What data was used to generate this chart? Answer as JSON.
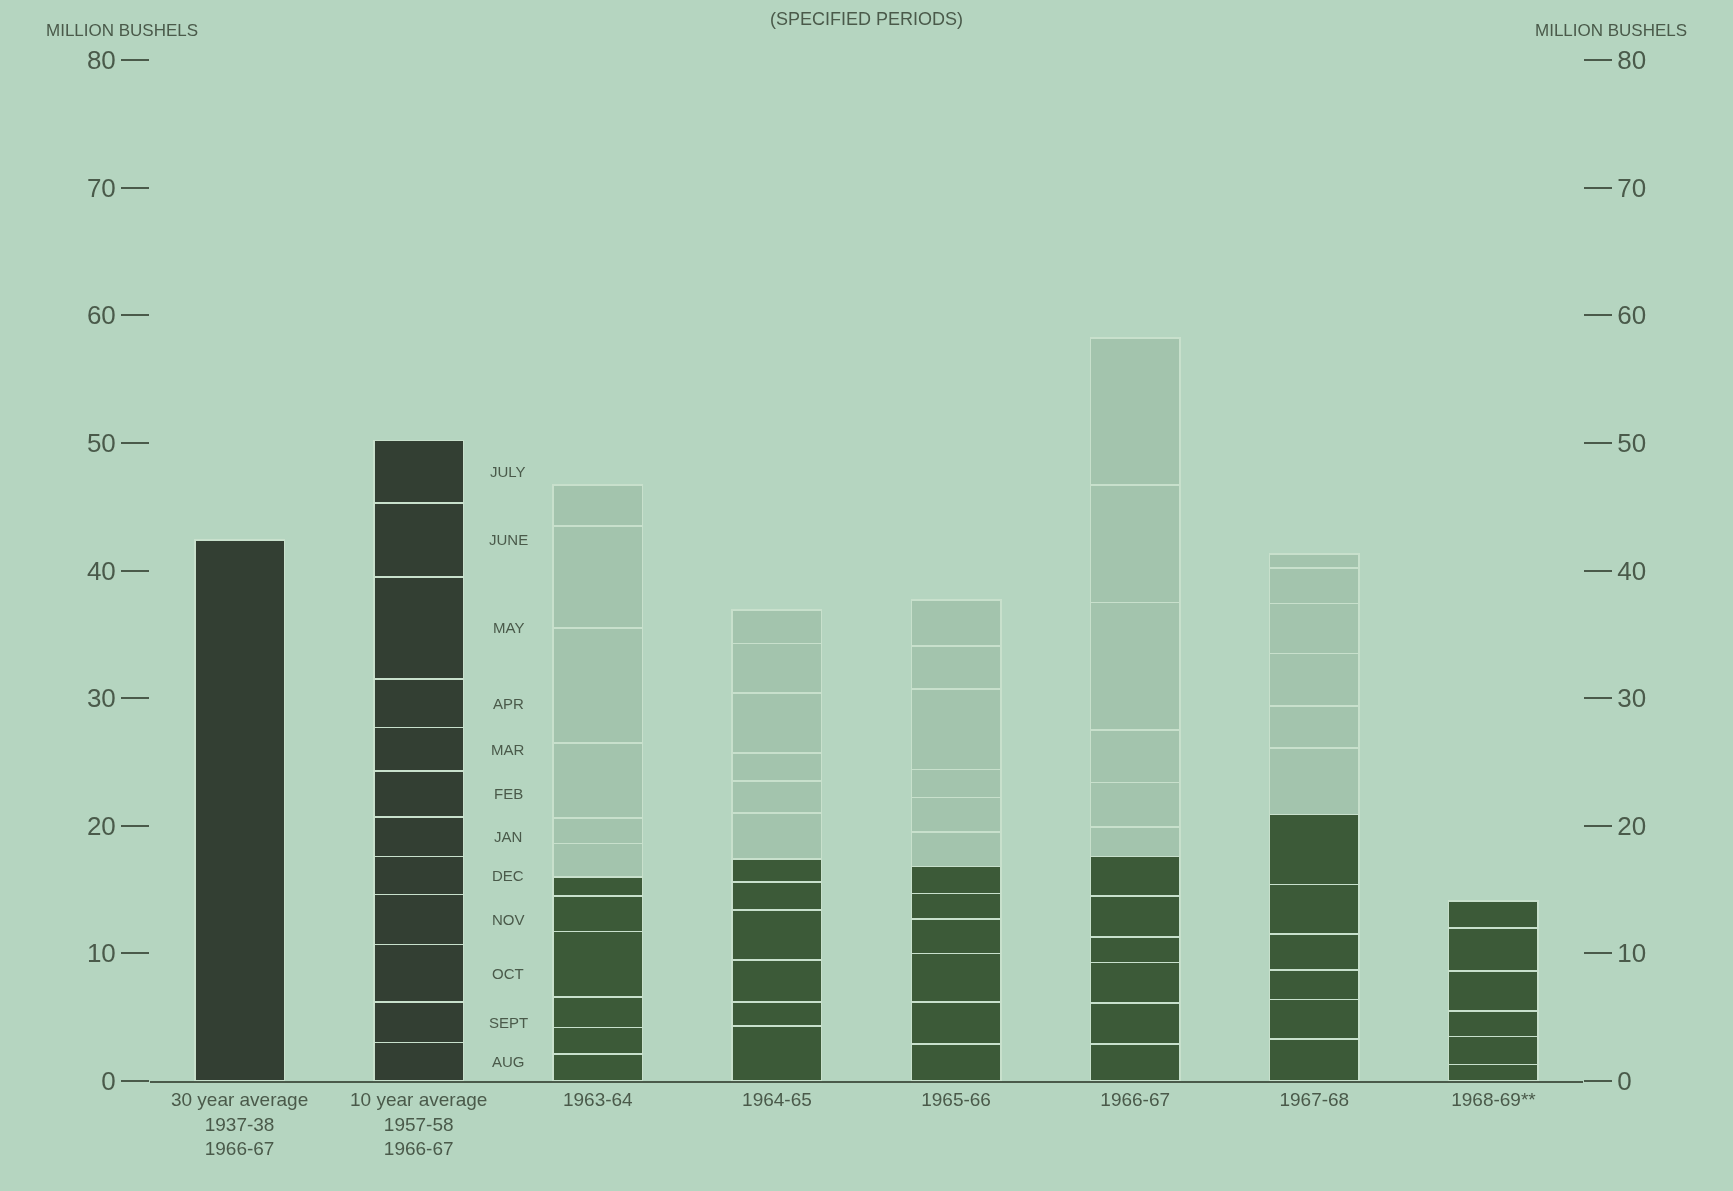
{
  "chart_data": {
    "type": "bar",
    "stacked": true,
    "title": "(SPECIFIED PERIODS)",
    "ylabel": "MILLION BUSHELS",
    "y2label": "MILLION BUSHELS",
    "categories": [
      "30 year average\n1937-38\n1966-67",
      "10 year average\n1957-58\n1966-67",
      "1963-64",
      "1964-65",
      "1965-66",
      "1966-67",
      "1967-68",
      "1968-69**"
    ],
    "series": [
      {
        "values": [
          42.4,
          null,
          null,
          null,
          null,
          null,
          null,
          null
        ],
        "colors": [
          "#333f33",
          "#333f33",
          "#3c5a38",
          "#3c5a38",
          "#3c5a38",
          "#3c5a38",
          "#3c5a38",
          "#3c5a38"
        ]
      },
      {
        "name": "AUG",
        "values": [
          null,
          3.0,
          2.1,
          4.3,
          2.9,
          2.9,
          3.3,
          1.3
        ],
        "colors": [
          "#333f33",
          "#333f33",
          "#3c5a38",
          "#3c5a38",
          "#3c5a38",
          "#3c5a38",
          "#3c5a38",
          "#3c5a38"
        ]
      },
      {
        "name": "SEPT",
        "values": [
          null,
          3.2,
          2.1,
          1.9,
          3.3,
          3.2,
          3.1,
          2.2
        ],
        "colors": [
          "#333f33",
          "#333f33",
          "#3c5a38",
          "#3c5a38",
          "#3c5a38",
          "#3c5a38",
          "#3c5a38",
          "#3c5a38"
        ]
      },
      {
        "name": "OCT",
        "values": [
          null,
          4.5,
          2.4,
          3.3,
          3.8,
          3.2,
          2.3,
          2.0
        ],
        "colors": [
          "#333f33",
          "#333f33",
          "#3c5a38",
          "#3c5a38",
          "#3c5a38",
          "#3c5a38",
          "#3c5a38",
          "#3c5a38"
        ]
      },
      {
        "name": "NOV",
        "values": [
          null,
          3.9,
          5.1,
          3.9,
          2.7,
          2.0,
          2.8,
          3.1
        ],
        "colors": [
          "#333f33",
          "#333f33",
          "#3c5a38",
          "#3c5a38",
          "#3c5a38",
          "#3c5a38",
          "#3c5a38",
          "#3c5a38"
        ]
      },
      {
        "name": "DEC",
        "values": [
          null,
          3.0,
          2.8,
          2.2,
          2.0,
          3.2,
          3.9,
          3.4
        ],
        "colors": [
          "#333f33",
          "#333f33",
          "#3c5a38",
          "#3c5a38",
          "#3c5a38",
          "#3c5a38",
          "#3c5a38",
          "#3c5a38"
        ]
      },
      {
        "name": "JAN",
        "values": [
          null,
          3.1,
          1.5,
          1.8,
          2.1,
          3.1,
          5.5,
          2.1
        ],
        "colors": [
          "#333f33",
          "#333f33",
          "#3c5a38",
          "#3c5a38",
          "#3c5a38",
          "#3c5a38",
          "#3c5a38",
          "#3c5a38"
        ]
      },
      {
        "name": "FEB",
        "values": [
          null,
          3.6,
          2.6,
          3.6,
          2.7,
          2.3,
          5.2,
          null
        ],
        "colors": [
          "#333f33",
          "#333f33",
          "#a3c4ad",
          "#a3c4ad",
          "#a3c4ad",
          "#a3c4ad",
          "#a3c4ad",
          "#a3c4ad"
        ]
      },
      {
        "name": "MAR",
        "values": [
          null,
          3.4,
          2.0,
          2.5,
          2.7,
          3.5,
          3.3,
          null
        ],
        "colors": [
          "#333f33",
          "#333f33",
          "#a3c4ad",
          "#a3c4ad",
          "#a3c4ad",
          "#a3c4ad",
          "#a3c4ad",
          "#a3c4ad"
        ]
      },
      {
        "name": "APR",
        "values": [
          null,
          3.8,
          5.9,
          2.2,
          2.2,
          4.1,
          4.1,
          null
        ],
        "colors": [
          "#333f33",
          "#333f33",
          "#a3c4ad",
          "#a3c4ad",
          "#a3c4ad",
          "#a3c4ad",
          "#a3c4ad",
          "#a3c4ad"
        ]
      },
      {
        "name": "MAY",
        "values": [
          null,
          8.0,
          9.0,
          4.7,
          6.3,
          10.0,
          3.9,
          null
        ],
        "colors": [
          "#333f33",
          "#333f33",
          "#a3c4ad",
          "#a3c4ad",
          "#a3c4ad",
          "#a3c4ad",
          "#a3c4ad",
          "#a3c4ad"
        ]
      },
      {
        "name": "JUNE",
        "values": [
          null,
          5.8,
          8.0,
          3.9,
          3.4,
          9.2,
          2.8,
          null
        ],
        "colors": [
          "#333f33",
          "#333f33",
          "#a3c4ad",
          "#a3c4ad",
          "#a3c4ad",
          "#a3c4ad",
          "#a3c4ad",
          "#a3c4ad"
        ]
      },
      {
        "name": "JULY",
        "values": [
          null,
          4.9,
          3.2,
          2.6,
          3.6,
          11.5,
          1.1,
          null
        ],
        "colors": [
          "#333f33",
          "#333f33",
          "#a3c4ad",
          "#a3c4ad",
          "#a3c4ad",
          "#a3c4ad",
          "#a3c4ad",
          "#a3c4ad"
        ]
      }
    ],
    "ylim": [
      0,
      80
    ],
    "yticks": [
      0,
      10,
      20,
      30,
      40,
      50,
      60,
      70,
      80
    ],
    "y2lim": [
      0,
      80
    ],
    "y2ticks": [
      0,
      10,
      20,
      30,
      40,
      50,
      60,
      70,
      80
    ],
    "grid": false,
    "legend": false
  }
}
